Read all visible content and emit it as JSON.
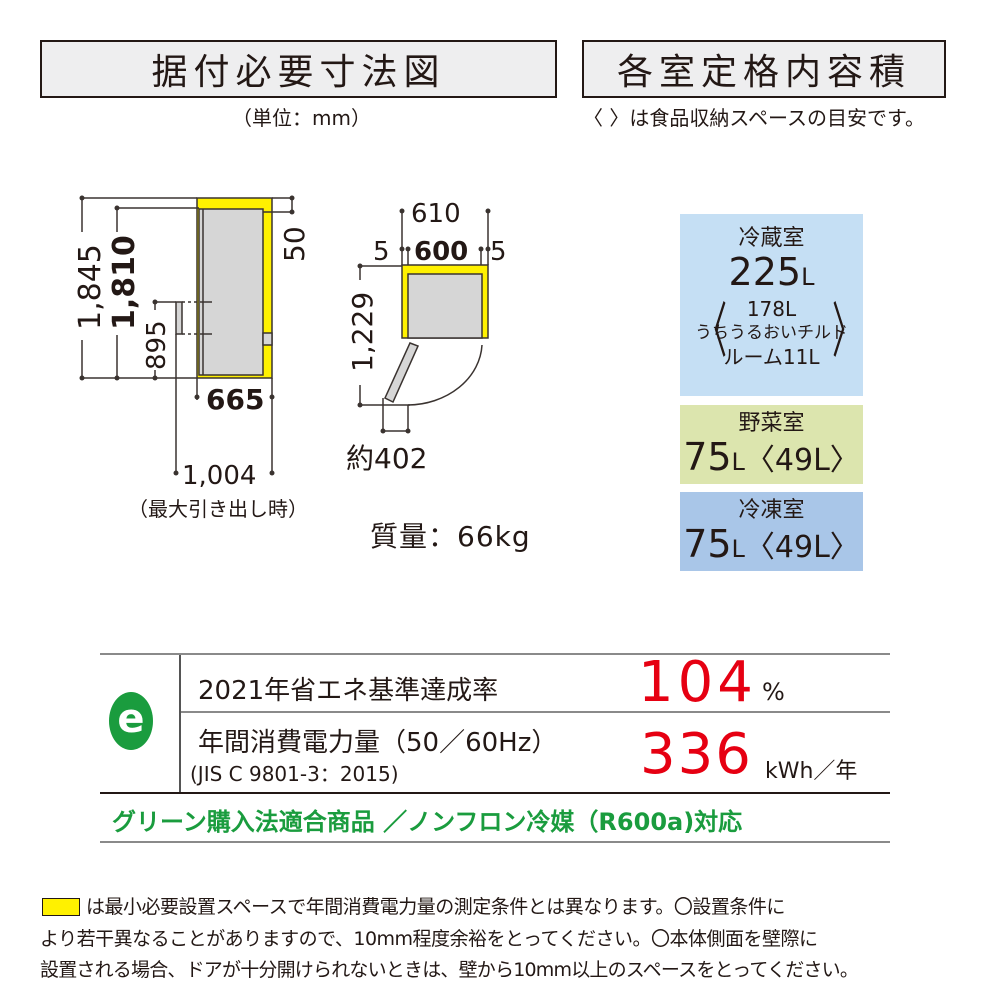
{
  "headers": {
    "install_dims": "据付必要寸法図",
    "capacity": "各室定格内容積"
  },
  "unit_note": "（単位：mm）",
  "capacity_note": "〈 〉は食品収納スペースの目安です。",
  "dimensions": {
    "h_total": "1,845",
    "h_body": "1,810",
    "h_handle": "895",
    "top_clearance": "50",
    "depth": "665",
    "depth_open": "1,004",
    "depth_open_note": "（最大引き出し時）",
    "width_total": "610",
    "width_body": "600",
    "side_left": "5",
    "side_right": "5",
    "door_swing": "1,229",
    "door_open": "約402"
  },
  "weight": "質量：66kg",
  "compartments": [
    {
      "name": "冷蔵室",
      "value": "225",
      "unit": "L",
      "sub1": "178L",
      "sub2": "うちうるおいチルド",
      "sub3": "ルーム11L",
      "color": "#c5dff4"
    },
    {
      "name": "野菜室",
      "value": "75",
      "unit": "L",
      "storage": "〈49L〉",
      "color": "#dce5ae"
    },
    {
      "name": "冷凍室",
      "value": "75",
      "unit": "L",
      "storage": "〈49L〉",
      "color": "#a9c6e8"
    }
  ],
  "energy": {
    "logo": "e",
    "rate_label": "2021年省エネ基準達成率",
    "rate_value": "104",
    "rate_unit": "%",
    "power_label": "年間消費電力量（50／60Hz）",
    "power_std": "(JIS C 9801-3：2015)",
    "power_value": "336",
    "power_unit": "kWh／年",
    "green_note": "グリーン購入法適合商品 ／ノンフロン冷媒（R600a)対応",
    "logo_color": "#1a9c3e",
    "value_color": "#e60012"
  },
  "footnote": {
    "swatch_color": "#fff100",
    "line1": "は最小必要設置スペースで年間消費電力量の測定条件とは異なります。〇設置条件に",
    "line2": "より若干異なることがありますので、10mm程度余裕をとってください。〇本体側面を壁際に",
    "line3": "設置される場合、ドアが十分開けられないときは、壁から10mm以上のスペースをとってください。"
  }
}
